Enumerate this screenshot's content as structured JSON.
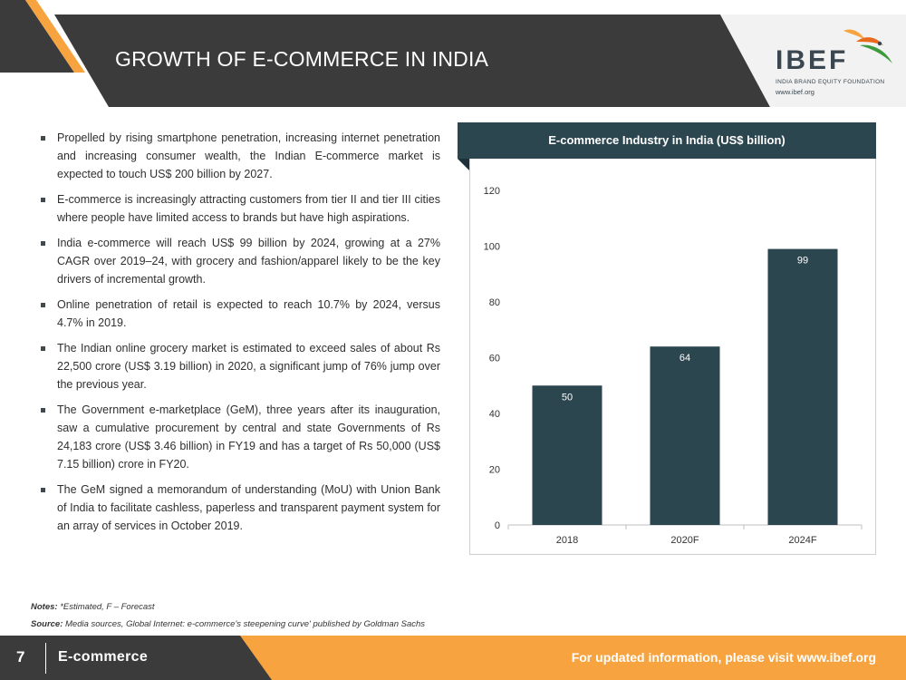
{
  "header": {
    "title": "GROWTH OF E-COMMERCE IN INDIA",
    "logo_text": "IBEF",
    "logo_subtitle": "INDIA BRAND EQUITY FOUNDATION",
    "logo_url": "www.ibef.org"
  },
  "bullets": [
    "Propelled by rising smartphone penetration, increasing internet penetration and increasing consumer wealth, the Indian E-commerce market is expected to touch US$ 200 billion by 2027.",
    "E-commerce is increasingly attracting customers from tier II and tier III cities where people have limited access to brands but have high aspirations.",
    "India e-commerce will reach US$ 99 billion by 2024, growing at a 27% CAGR over 2019–24, with grocery and fashion/apparel likely to be the key drivers of incremental growth.",
    "Online penetration of retail is expected to reach 10.7% by 2024, versus 4.7% in 2019.",
    "The Indian online grocery market is estimated to exceed sales of about Rs 22,500 crore (US$ 3.19 billion) in 2020, a significant jump of 76% jump over the previous year.",
    "The Government e-marketplace (GeM), three years after its inauguration, saw a cumulative procurement by central and state Governments of Rs 24,183 crore (US$ 3.46 billion) in FY19 and has a target of Rs 50,000 (US$ 7.15 billion) crore in FY20.",
    "The GeM signed a memorandum of understanding (MoU) with Union Bank of India to facilitate cashless, paperless and transparent payment system for an array of services in October 2019."
  ],
  "chart_data": {
    "type": "bar",
    "title": "E-commerce Industry in India (US$ billion)",
    "categories": [
      "2018",
      "2020F",
      "2024F"
    ],
    "values": [
      50,
      64,
      99
    ],
    "yticks": [
      "0",
      "20",
      "40",
      "60",
      "80",
      "100",
      "120"
    ],
    "ylim": [
      0,
      120
    ],
    "grid": false,
    "bar_color": "#2c4650"
  },
  "notes": {
    "notes_label": "Notes:",
    "notes_text": " *Estimated, F – Forecast",
    "source_label": "Source:",
    "source_text": " Media sources, Global Internet: e-commerce's steepening curve' published by Goldman Sachs"
  },
  "footer": {
    "page_number": "7",
    "section": "E-commerce",
    "visit_text": "For updated information, please visit www.ibef.org"
  },
  "colors": {
    "dark": "#3b3b3b",
    "accent": "#f7a440",
    "chart_header": "#2c4650"
  }
}
